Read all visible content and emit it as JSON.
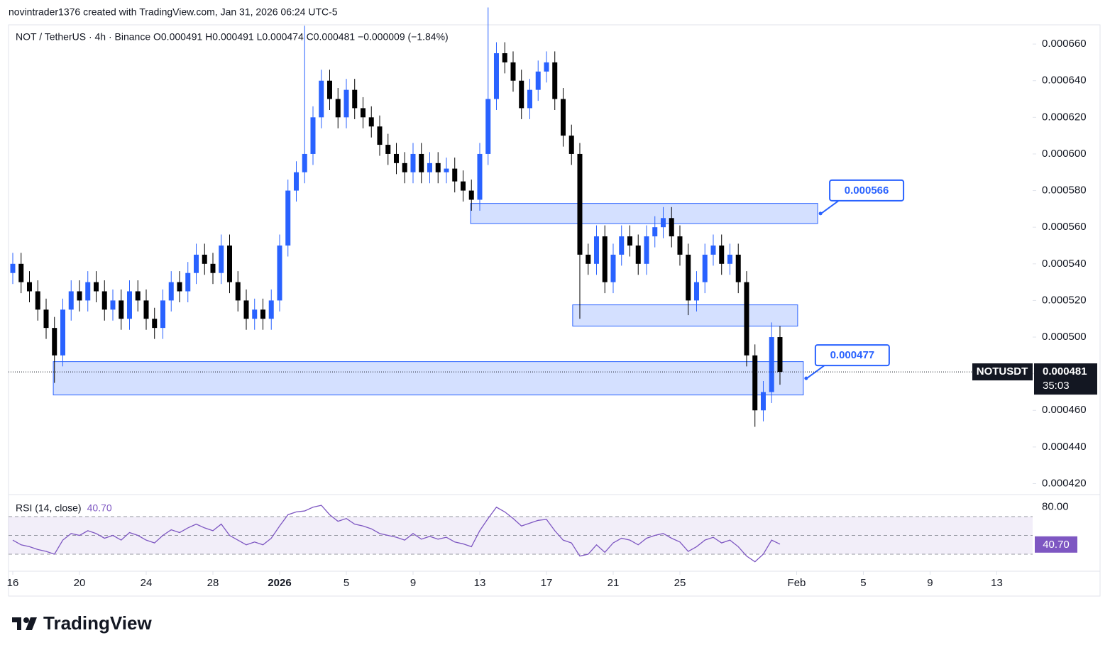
{
  "header": "novintrader1376 created with TradingView.com, Jan 31, 2026 06:24 UTC-5",
  "brand": "TradingView",
  "chart_data": [
    {
      "type": "candlestick",
      "title": "NOT / TetherUS · 4h · Binance  O0.000491  H0.000491  L0.000474  C0.000481  −0.000009 (−1.84%)",
      "up_color": "#2962ff",
      "down_color": "#000000",
      "x": [
        0,
        0.5,
        1,
        1.5,
        2,
        2.5,
        3,
        3.5,
        4,
        4.5,
        5,
        5.5,
        6,
        6.5,
        7,
        7.5,
        8,
        8.5,
        9,
        9.5,
        10,
        10.5,
        11,
        11.5,
        12,
        12.5,
        13,
        13.5,
        14,
        14.5,
        15,
        15.5,
        16,
        16.5,
        17,
        17.5,
        18,
        18.5,
        19,
        19.5,
        20,
        20.5,
        21,
        21.5,
        22,
        22.5,
        23,
        23.5,
        24,
        24.5,
        25,
        25.5,
        26,
        26.5,
        27,
        27.5,
        28,
        28.5,
        29,
        29.5,
        30,
        30.5,
        31,
        31.5,
        32,
        32.5,
        33,
        33.5,
        34,
        34.5,
        35,
        35.5,
        36,
        36.5,
        37,
        37.5,
        38,
        38.5,
        39,
        39.5,
        40,
        40.5,
        41,
        41.5,
        42,
        42.5,
        43,
        43.5,
        44,
        44.5,
        45,
        45.5,
        46
      ],
      "open": [
        0.000535,
        0.00054,
        0.00053,
        0.000525,
        0.000515,
        0.000505,
        0.00049,
        0.000515,
        0.000525,
        0.00052,
        0.00053,
        0.000525,
        0.000515,
        0.00052,
        0.00051,
        0.000525,
        0.00052,
        0.00051,
        0.000505,
        0.00052,
        0.00053,
        0.000525,
        0.000535,
        0.000545,
        0.00054,
        0.000535,
        0.00055,
        0.00053,
        0.00052,
        0.00051,
        0.000515,
        0.00051,
        0.00052,
        0.00055,
        0.00058,
        0.00059,
        0.0006,
        0.00062,
        0.00064,
        0.00063,
        0.00062,
        0.000635,
        0.000625,
        0.00062,
        0.000615,
        0.000605,
        0.0006,
        0.000595,
        0.00059,
        0.0006,
        0.00059,
        0.000595,
        0.00059,
        0.000592,
        0.000585,
        0.00058,
        0.000575,
        0.0006,
        0.00063,
        0.000655,
        0.00065,
        0.00064,
        0.000625,
        0.000635,
        0.000645,
        0.00065,
        0.00063,
        0.00061,
        0.0006,
        0.000545,
        0.00054,
        0.000555,
        0.00053,
        0.000545,
        0.000555,
        0.00055,
        0.00054,
        0.000555,
        0.00056,
        0.000565,
        0.000555,
        0.000545,
        0.00052,
        0.00053,
        0.000545,
        0.00055,
        0.00054,
        0.000545,
        0.00053,
        0.00049,
        0.00046,
        0.00047,
        0.0005
      ],
      "high": [
        0.000546,
        0.000546,
        0.000536,
        0.000531,
        0.000521,
        0.000511,
        0.000521,
        0.000531,
        0.000531,
        0.000536,
        0.000536,
        0.000531,
        0.000526,
        0.000526,
        0.000531,
        0.000531,
        0.000526,
        0.000516,
        0.000526,
        0.000536,
        0.000536,
        0.000541,
        0.000551,
        0.000551,
        0.000546,
        0.000556,
        0.000556,
        0.000536,
        0.000526,
        0.000521,
        0.000521,
        0.000526,
        0.000556,
        0.000586,
        0.000596,
        0.00067,
        0.000626,
        0.000646,
        0.000646,
        0.000636,
        0.000641,
        0.000641,
        0.000631,
        0.000626,
        0.000621,
        0.000611,
        0.000606,
        0.000601,
        0.000606,
        0.000606,
        0.000601,
        0.000601,
        0.000598,
        0.000598,
        0.000591,
        0.000586,
        0.000606,
        0.00068,
        0.000661,
        0.000661,
        0.000656,
        0.000646,
        0.000641,
        0.000651,
        0.000656,
        0.000656,
        0.000636,
        0.000616,
        0.000606,
        0.000551,
        0.000561,
        0.000561,
        0.000551,
        0.000561,
        0.000561,
        0.000556,
        0.000561,
        0.000566,
        0.000571,
        0.000571,
        0.000561,
        0.000551,
        0.000536,
        0.000551,
        0.000556,
        0.000556,
        0.000551,
        0.000551,
        0.000536,
        0.000496,
        0.000476,
        0.000508,
        0.000506
      ],
      "low": [
        0.000529,
        0.000524,
        0.000519,
        0.000509,
        0.000499,
        0.000475,
        0.000484,
        0.000509,
        0.000514,
        0.000514,
        0.000519,
        0.000509,
        0.000509,
        0.000504,
        0.000504,
        0.000514,
        0.000504,
        0.000499,
        0.000499,
        0.000514,
        0.000519,
        0.000519,
        0.000529,
        0.000534,
        0.000529,
        0.000529,
        0.000524,
        0.000514,
        0.000504,
        0.000504,
        0.000504,
        0.000504,
        0.000514,
        0.000544,
        0.000574,
        0.000584,
        0.000594,
        0.000614,
        0.000624,
        0.000614,
        0.000614,
        0.000619,
        0.000614,
        0.000609,
        0.000599,
        0.000594,
        0.000589,
        0.000584,
        0.000584,
        0.000584,
        0.000584,
        0.000584,
        0.000584,
        0.000579,
        0.000574,
        0.000569,
        0.000569,
        0.000594,
        0.000624,
        0.000644,
        0.000634,
        0.000619,
        0.000619,
        0.000629,
        0.000639,
        0.000624,
        0.000604,
        0.000594,
        0.00051,
        0.000534,
        0.000534,
        0.000524,
        0.000524,
        0.000539,
        0.000544,
        0.000534,
        0.000534,
        0.000549,
        0.000554,
        0.000549,
        0.000539,
        0.000512,
        0.000514,
        0.000524,
        0.000539,
        0.000534,
        0.000534,
        0.000524,
        0.000484,
        0.000451,
        0.000454,
        0.000464,
        0.000474
      ],
      "close": [
        0.00054,
        0.00053,
        0.000525,
        0.000515,
        0.000505,
        0.00049,
        0.000515,
        0.000525,
        0.00052,
        0.00053,
        0.000525,
        0.000515,
        0.00052,
        0.00051,
        0.000525,
        0.00052,
        0.00051,
        0.000505,
        0.00052,
        0.00053,
        0.000525,
        0.000535,
        0.000545,
        0.00054,
        0.000535,
        0.00055,
        0.00053,
        0.00052,
        0.00051,
        0.000515,
        0.00051,
        0.00052,
        0.00055,
        0.00058,
        0.00059,
        0.0006,
        0.00062,
        0.00064,
        0.00063,
        0.00062,
        0.000635,
        0.000625,
        0.00062,
        0.000615,
        0.000605,
        0.0006,
        0.000595,
        0.00059,
        0.0006,
        0.00059,
        0.000595,
        0.00059,
        0.000592,
        0.000585,
        0.00058,
        0.000575,
        0.0006,
        0.00063,
        0.000655,
        0.00065,
        0.00064,
        0.000625,
        0.000635,
        0.000645,
        0.00065,
        0.00063,
        0.00061,
        0.0006,
        0.000545,
        0.00054,
        0.000555,
        0.00053,
        0.000545,
        0.000555,
        0.00055,
        0.00054,
        0.000555,
        0.00056,
        0.000565,
        0.000555,
        0.000545,
        0.00052,
        0.00053,
        0.000545,
        0.00055,
        0.00054,
        0.000545,
        0.00053,
        0.00049,
        0.00046,
        0.00047,
        0.0005,
        0.000481
      ],
      "xlim": [
        -0.255,
        61.15
      ],
      "ylim": [
        0.000414,
        0.0006705
      ],
      "yticks": [
        {
          "value": 0.00042,
          "label": "0.000420"
        },
        {
          "value": 0.00044,
          "label": "0.000440"
        },
        {
          "value": 0.00046,
          "label": "0.000460"
        },
        {
          "value": 0.00048,
          "label": "0.000480"
        },
        {
          "value": 0.0005,
          "label": "0.000500"
        },
        {
          "value": 0.00052,
          "label": "0.000520"
        },
        {
          "value": 0.00054,
          "label": "0.000540"
        },
        {
          "value": 0.00056,
          "label": "0.000560"
        },
        {
          "value": 0.00058,
          "label": "0.000580"
        },
        {
          "value": 0.0006,
          "label": "0.000600"
        },
        {
          "value": 0.00062,
          "label": "0.000620"
        },
        {
          "value": 0.00064,
          "label": "0.000640"
        },
        {
          "value": 0.00066,
          "label": "0.000660"
        }
      ],
      "xticks": [
        {
          "value": 0,
          "label": "16"
        },
        {
          "value": 4,
          "label": "20"
        },
        {
          "value": 8,
          "label": "24"
        },
        {
          "value": 12,
          "label": "28"
        },
        {
          "value": 16,
          "label": "2026"
        },
        {
          "value": 20,
          "label": "5"
        },
        {
          "value": 24,
          "label": "9"
        },
        {
          "value": 28,
          "label": "13"
        },
        {
          "value": 32,
          "label": "17"
        },
        {
          "value": 36,
          "label": "21"
        },
        {
          "value": 40,
          "label": "25"
        },
        {
          "value": 47,
          "label": "Feb"
        },
        {
          "value": 51,
          "label": "5"
        },
        {
          "value": 55,
          "label": "9"
        },
        {
          "value": 59,
          "label": "13"
        }
      ],
      "zones": [
        {
          "top": 0.000573,
          "bottom": 0.000562,
          "from": 27.45,
          "to": 48.26,
          "label": 0.000566
        },
        {
          "top": 0.0005176,
          "bottom": 0.000506,
          "from": 33.57,
          "to": 47.06
        },
        {
          "top": 0.0004866,
          "bottom": 0.0004684,
          "from": 2.43,
          "to": 47.4,
          "label": 0.000477
        }
      ],
      "zone_color": "#2962ff",
      "last": {
        "name": "NOTUSDT",
        "price": 0.000481,
        "countdown": "35:03"
      }
    },
    {
      "type": "line",
      "title": "RSI (14, close)",
      "color": "#7e57c2",
      "values": [
        45,
        40,
        38,
        35,
        33,
        30,
        45,
        52,
        50,
        55,
        52,
        47,
        50,
        45,
        53,
        50,
        45,
        42,
        50,
        56,
        53,
        58,
        62,
        58,
        55,
        62,
        50,
        45,
        40,
        43,
        40,
        47,
        60,
        72,
        75,
        76,
        80,
        82,
        72,
        65,
        68,
        62,
        60,
        57,
        52,
        50,
        48,
        45,
        52,
        46,
        49,
        46,
        48,
        43,
        41,
        38,
        55,
        68,
        80,
        75,
        68,
        60,
        63,
        66,
        67,
        55,
        45,
        42,
        28,
        30,
        40,
        32,
        42,
        47,
        45,
        40,
        47,
        50,
        52,
        47,
        43,
        33,
        38,
        45,
        48,
        42,
        45,
        38,
        28,
        22,
        30,
        45,
        40.7
      ],
      "last_value": {
        "value": 40.7,
        "label": "40.70"
      },
      "ylim": [
        11.9,
        93.4
      ],
      "yticks": [
        {
          "value": 80,
          "label": "80.00"
        }
      ],
      "band": [
        30,
        70
      ],
      "midline": 50
    }
  ]
}
